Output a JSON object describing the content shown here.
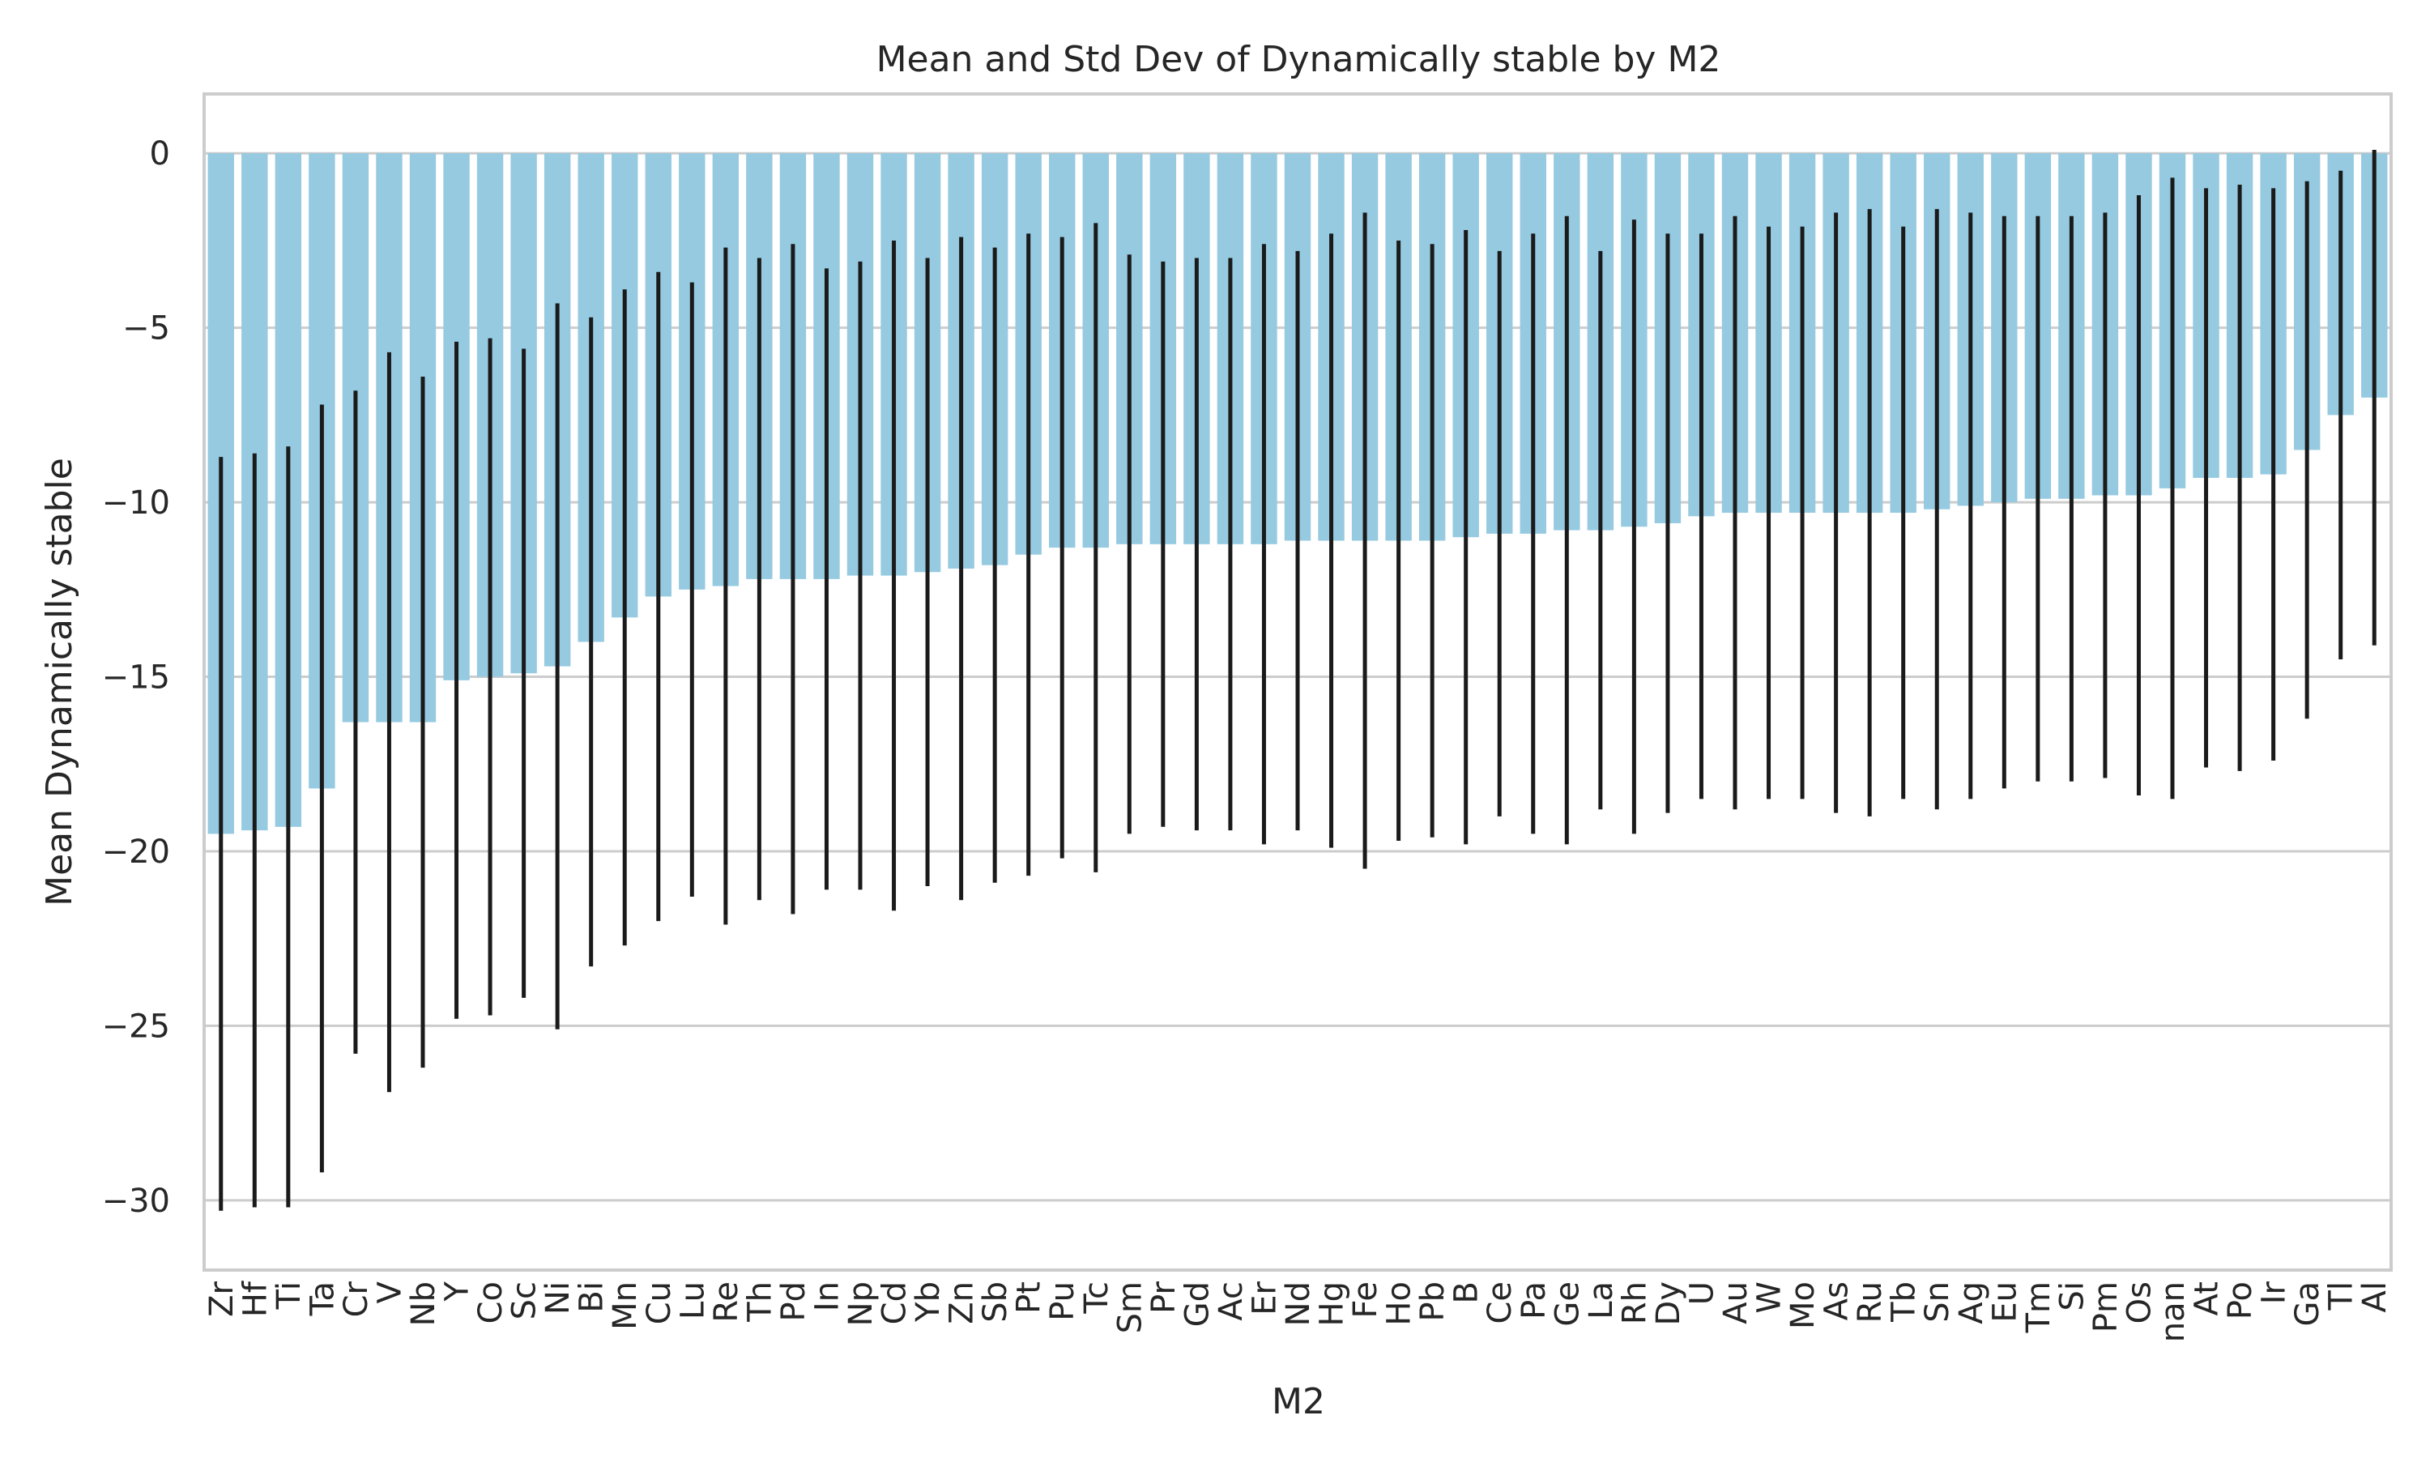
{
  "chart_data": {
    "type": "bar",
    "title": "Mean and Std Dev of Dynamically stable by M2",
    "xlabel": "M2",
    "ylabel": "Mean Dynamically stable",
    "ylim": [
      -32,
      1.7
    ],
    "yticks": [
      0,
      -5,
      -10,
      -15,
      -20,
      -25,
      -30
    ],
    "ytick_labels": [
      "0",
      "−5",
      "−10",
      "−15",
      "−20",
      "−25",
      "−30"
    ],
    "grid": true,
    "bar_color": "#95cae1",
    "error_color": "#1a1a1a",
    "categories": [
      "Zr",
      "Hf",
      "Ti",
      "Ta",
      "Cr",
      "V",
      "Nb",
      "Y",
      "Co",
      "Sc",
      "Ni",
      "Bi",
      "Mn",
      "Cu",
      "Lu",
      "Re",
      "Th",
      "Pd",
      "In",
      "Np",
      "Cd",
      "Yb",
      "Zn",
      "Sb",
      "Pt",
      "Pu",
      "Tc",
      "Sm",
      "Pr",
      "Gd",
      "Ac",
      "Er",
      "Nd",
      "Hg",
      "Fe",
      "Ho",
      "Pb",
      "B",
      "Ce",
      "Pa",
      "Ge",
      "La",
      "Rh",
      "Dy",
      "U",
      "Au",
      "W",
      "Mo",
      "As",
      "Ru",
      "Tb",
      "Sn",
      "Ag",
      "Eu",
      "Tm",
      "Si",
      "Pm",
      "Os",
      "nan",
      "At",
      "Po",
      "Ir",
      "Ga",
      "Tl",
      "Al"
    ],
    "values": [
      -19.5,
      -19.4,
      -19.3,
      -18.2,
      -16.3,
      -16.3,
      -16.3,
      -15.1,
      -15.0,
      -14.9,
      -14.7,
      -14.0,
      -13.3,
      -12.7,
      -12.5,
      -12.4,
      -12.2,
      -12.2,
      -12.2,
      -12.1,
      -12.1,
      -12.0,
      -11.9,
      -11.8,
      -11.5,
      -11.3,
      -11.3,
      -11.2,
      -11.2,
      -11.2,
      -11.2,
      -11.2,
      -11.1,
      -11.1,
      -11.1,
      -11.1,
      -11.1,
      -11.0,
      -10.9,
      -10.9,
      -10.8,
      -10.8,
      -10.7,
      -10.6,
      -10.4,
      -10.3,
      -10.3,
      -10.3,
      -10.3,
      -10.3,
      -10.3,
      -10.2,
      -10.1,
      -10.0,
      -9.9,
      -9.9,
      -9.8,
      -9.8,
      -9.6,
      -9.3,
      -9.3,
      -9.2,
      -8.5,
      -7.5,
      -7.0
    ],
    "std": [
      10.8,
      10.8,
      10.9,
      11.0,
      9.5,
      10.6,
      9.9,
      9.7,
      9.7,
      9.3,
      10.4,
      9.3,
      9.4,
      9.3,
      8.8,
      9.7,
      9.2,
      9.6,
      8.9,
      9.0,
      9.6,
      9.0,
      9.5,
      9.1,
      9.2,
      8.9,
      9.3,
      8.3,
      8.1,
      8.2,
      8.2,
      8.6,
      8.3,
      8.8,
      9.4,
      8.6,
      8.5,
      8.8,
      8.1,
      8.6,
      9.0,
      8.0,
      8.8,
      8.3,
      8.1,
      8.5,
      8.2,
      8.2,
      8.6,
      8.7,
      8.2,
      8.6,
      8.4,
      8.2,
      8.1,
      8.1,
      8.1,
      8.6,
      8.9,
      8.3,
      8.4,
      8.2,
      7.7,
      7.0,
      7.1
    ]
  }
}
